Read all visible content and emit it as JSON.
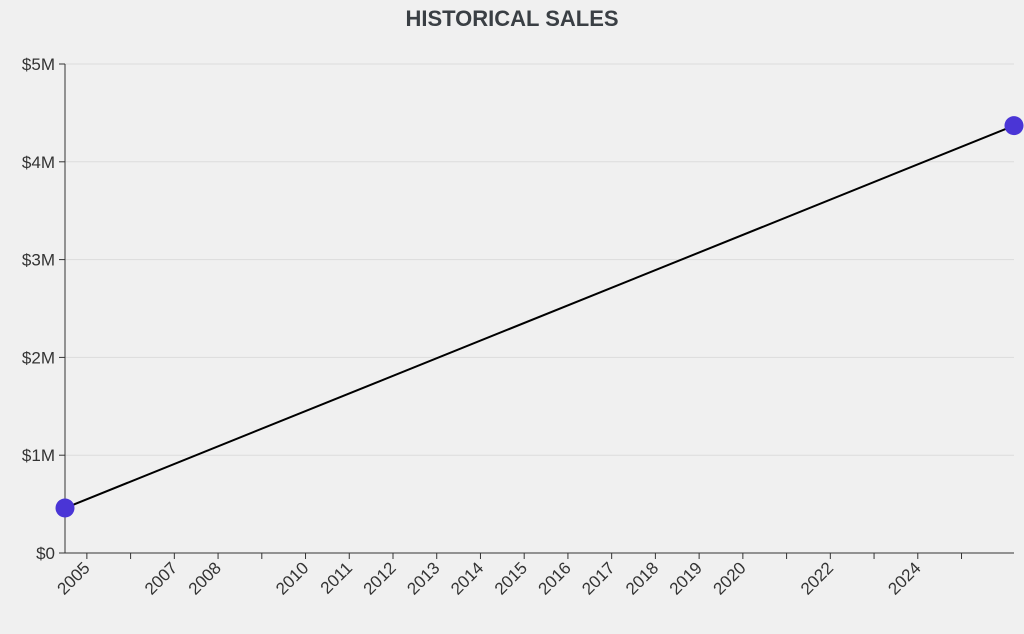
{
  "chart_data": {
    "type": "line",
    "title": "HISTORICAL SALES",
    "xlabel": "",
    "ylabel": "",
    "x_ticks": [
      2005,
      2006,
      2007,
      2008,
      2009,
      2010,
      2011,
      2012,
      2013,
      2014,
      2015,
      2016,
      2017,
      2018,
      2019,
      2020,
      2021,
      2022,
      2023,
      2024,
      2025
    ],
    "x_tick_labels": [
      "2005",
      "",
      "2007",
      "2008",
      "",
      "2010",
      "2011",
      "2012",
      "2013",
      "2014",
      "2015",
      "2016",
      "2017",
      "2018",
      "2019",
      "2020",
      "",
      "2022",
      "",
      "2024",
      ""
    ],
    "y_ticks": [
      0,
      1000000,
      2000000,
      3000000,
      4000000,
      5000000
    ],
    "y_tick_labels": [
      "$0",
      "$1M",
      "$2M",
      "$3M",
      "$4M",
      "$5M"
    ],
    "xlim": [
      2004.5,
      2026.2
    ],
    "ylim": [
      0,
      5000000
    ],
    "grid": true,
    "series": [
      {
        "x": [
          2004.5,
          2026.2
        ],
        "y": [
          460000,
          4370000
        ],
        "line_color": "#000000",
        "marker_color": "#4a35d6"
      }
    ]
  }
}
